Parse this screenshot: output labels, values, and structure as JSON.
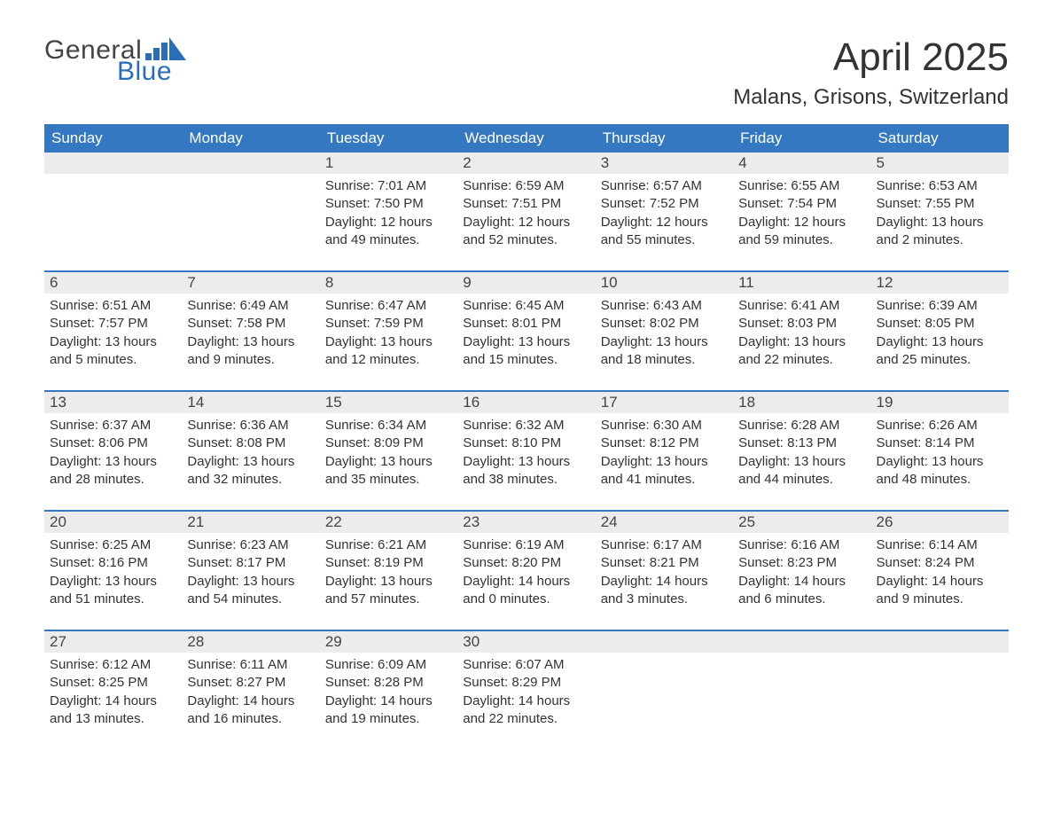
{
  "logo": {
    "word1": "General",
    "word2": "Blue",
    "text_color": "#444444",
    "blue_color": "#2a6db8"
  },
  "title": "April 2025",
  "location": "Malans, Grisons, Switzerland",
  "colors": {
    "header_bg": "#3478c2",
    "header_fg": "#ffffff",
    "daynum_bg": "#ececec",
    "rule": "#3478c2",
    "text": "#333333",
    "background": "#ffffff"
  },
  "typography": {
    "title_fontsize": 44,
    "location_fontsize": 24,
    "header_fontsize": 17,
    "daynum_fontsize": 17,
    "body_fontsize": 15
  },
  "day_headers": [
    "Sunday",
    "Monday",
    "Tuesday",
    "Wednesday",
    "Thursday",
    "Friday",
    "Saturday"
  ],
  "weeks": [
    {
      "days": [
        null,
        null,
        {
          "n": "1",
          "sunrise": "7:01 AM",
          "sunset": "7:50 PM",
          "daylight": "12 hours and 49 minutes."
        },
        {
          "n": "2",
          "sunrise": "6:59 AM",
          "sunset": "7:51 PM",
          "daylight": "12 hours and 52 minutes."
        },
        {
          "n": "3",
          "sunrise": "6:57 AM",
          "sunset": "7:52 PM",
          "daylight": "12 hours and 55 minutes."
        },
        {
          "n": "4",
          "sunrise": "6:55 AM",
          "sunset": "7:54 PM",
          "daylight": "12 hours and 59 minutes."
        },
        {
          "n": "5",
          "sunrise": "6:53 AM",
          "sunset": "7:55 PM",
          "daylight": "13 hours and 2 minutes."
        }
      ]
    },
    {
      "days": [
        {
          "n": "6",
          "sunrise": "6:51 AM",
          "sunset": "7:57 PM",
          "daylight": "13 hours and 5 minutes."
        },
        {
          "n": "7",
          "sunrise": "6:49 AM",
          "sunset": "7:58 PM",
          "daylight": "13 hours and 9 minutes."
        },
        {
          "n": "8",
          "sunrise": "6:47 AM",
          "sunset": "7:59 PM",
          "daylight": "13 hours and 12 minutes."
        },
        {
          "n": "9",
          "sunrise": "6:45 AM",
          "sunset": "8:01 PM",
          "daylight": "13 hours and 15 minutes."
        },
        {
          "n": "10",
          "sunrise": "6:43 AM",
          "sunset": "8:02 PM",
          "daylight": "13 hours and 18 minutes."
        },
        {
          "n": "11",
          "sunrise": "6:41 AM",
          "sunset": "8:03 PM",
          "daylight": "13 hours and 22 minutes."
        },
        {
          "n": "12",
          "sunrise": "6:39 AM",
          "sunset": "8:05 PM",
          "daylight": "13 hours and 25 minutes."
        }
      ]
    },
    {
      "days": [
        {
          "n": "13",
          "sunrise": "6:37 AM",
          "sunset": "8:06 PM",
          "daylight": "13 hours and 28 minutes."
        },
        {
          "n": "14",
          "sunrise": "6:36 AM",
          "sunset": "8:08 PM",
          "daylight": "13 hours and 32 minutes."
        },
        {
          "n": "15",
          "sunrise": "6:34 AM",
          "sunset": "8:09 PM",
          "daylight": "13 hours and 35 minutes."
        },
        {
          "n": "16",
          "sunrise": "6:32 AM",
          "sunset": "8:10 PM",
          "daylight": "13 hours and 38 minutes."
        },
        {
          "n": "17",
          "sunrise": "6:30 AM",
          "sunset": "8:12 PM",
          "daylight": "13 hours and 41 minutes."
        },
        {
          "n": "18",
          "sunrise": "6:28 AM",
          "sunset": "8:13 PM",
          "daylight": "13 hours and 44 minutes."
        },
        {
          "n": "19",
          "sunrise": "6:26 AM",
          "sunset": "8:14 PM",
          "daylight": "13 hours and 48 minutes."
        }
      ]
    },
    {
      "days": [
        {
          "n": "20",
          "sunrise": "6:25 AM",
          "sunset": "8:16 PM",
          "daylight": "13 hours and 51 minutes."
        },
        {
          "n": "21",
          "sunrise": "6:23 AM",
          "sunset": "8:17 PM",
          "daylight": "13 hours and 54 minutes."
        },
        {
          "n": "22",
          "sunrise": "6:21 AM",
          "sunset": "8:19 PM",
          "daylight": "13 hours and 57 minutes."
        },
        {
          "n": "23",
          "sunrise": "6:19 AM",
          "sunset": "8:20 PM",
          "daylight": "14 hours and 0 minutes."
        },
        {
          "n": "24",
          "sunrise": "6:17 AM",
          "sunset": "8:21 PM",
          "daylight": "14 hours and 3 minutes."
        },
        {
          "n": "25",
          "sunrise": "6:16 AM",
          "sunset": "8:23 PM",
          "daylight": "14 hours and 6 minutes."
        },
        {
          "n": "26",
          "sunrise": "6:14 AM",
          "sunset": "8:24 PM",
          "daylight": "14 hours and 9 minutes."
        }
      ]
    },
    {
      "days": [
        {
          "n": "27",
          "sunrise": "6:12 AM",
          "sunset": "8:25 PM",
          "daylight": "14 hours and 13 minutes."
        },
        {
          "n": "28",
          "sunrise": "6:11 AM",
          "sunset": "8:27 PM",
          "daylight": "14 hours and 16 minutes."
        },
        {
          "n": "29",
          "sunrise": "6:09 AM",
          "sunset": "8:28 PM",
          "daylight": "14 hours and 19 minutes."
        },
        {
          "n": "30",
          "sunrise": "6:07 AM",
          "sunset": "8:29 PM",
          "daylight": "14 hours and 22 minutes."
        },
        null,
        null,
        null
      ]
    }
  ],
  "labels": {
    "sunrise": "Sunrise: ",
    "sunset": "Sunset: ",
    "daylight": "Daylight: "
  }
}
